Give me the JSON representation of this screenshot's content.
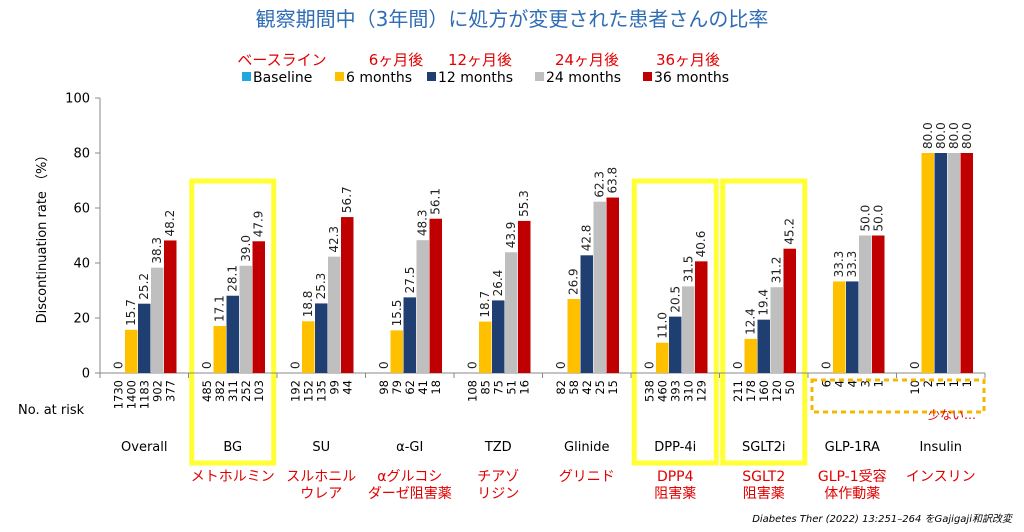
{
  "title": "観察期間中（3年間）に処方が変更された患者さんの比率",
  "legend_ja": [
    "ベースライン",
    "6ヶ月後",
    "12ヶ月後",
    "24ヶ月後",
    "36ヶ月後"
  ],
  "risk_label": "No. at risk",
  "annotation_small": "少ない…",
  "source": "Diabetes Ther (2022) 13:251–264 をGajigaji和訳改変",
  "highlight_color": "#ffff33",
  "annotation_color": "#f5b800",
  "chart_data": {
    "type": "bar",
    "ylabel": "Discontinuation rate （%）",
    "ylim": [
      0,
      100
    ],
    "yticks": [
      0,
      20,
      40,
      60,
      80,
      100
    ],
    "categories": [
      "Overall",
      "BG",
      "SU",
      "α-GI",
      "TZD",
      "Glinide",
      "DPP-4i",
      "SGLT2i",
      "GLP-1RA",
      "Insulin"
    ],
    "categories_ja": [
      "",
      "メトホルミン",
      "スルホニル\nウレア",
      "αグルコシ\nダーゼ阻害薬",
      "チアゾ\nリジン",
      "グリニド",
      "DPP4\n阻害薬",
      "SGLT2\n阻害薬",
      "GLP-1受容\n体作動薬",
      "インスリン"
    ],
    "highlighted": [
      "BG",
      "DPP-4i",
      "SGLT2i"
    ],
    "series": [
      {
        "name": "Baseline",
        "color": "#1fa8e0",
        "values": [
          0,
          0,
          0,
          0,
          0,
          0,
          0,
          0,
          0,
          0
        ],
        "labels": [
          "0",
          "0",
          "0",
          "0",
          "0",
          "0",
          "0",
          "0",
          "0",
          "0"
        ]
      },
      {
        "name": "6 months",
        "color": "#ffc000",
        "values": [
          15.7,
          17.1,
          18.8,
          15.5,
          18.7,
          26.9,
          11.0,
          12.4,
          33.3,
          80.0
        ],
        "labels": [
          "15.7",
          "17.1",
          "18.8",
          "15.5",
          "18.7",
          "26.9",
          "11.0",
          "12.4",
          "33.3",
          "80.0"
        ]
      },
      {
        "name": "12 months",
        "color": "#1f3f73",
        "values": [
          25.2,
          28.1,
          25.3,
          27.5,
          26.4,
          42.8,
          20.5,
          19.4,
          33.3,
          80.0
        ],
        "labels": [
          "25.2",
          "28.1",
          "25.3",
          "27.5",
          "26.4",
          "42.8",
          "20.5",
          "19.4",
          "33.3",
          "80.0"
        ]
      },
      {
        "name": "24 months",
        "color": "#bfbfbf",
        "values": [
          38.3,
          39.0,
          42.3,
          48.3,
          43.9,
          62.3,
          31.5,
          31.2,
          50.0,
          80.0
        ],
        "labels": [
          "38.3",
          "39.0",
          "42.3",
          "48.3",
          "43.9",
          "62.3",
          "31.5",
          "31.2",
          "50.0",
          "80.0"
        ]
      },
      {
        "name": "36 months",
        "color": "#c00000",
        "values": [
          48.2,
          47.9,
          56.7,
          56.1,
          55.3,
          63.8,
          40.6,
          45.2,
          50.0,
          80.0
        ],
        "labels": [
          "48.2",
          "47.9",
          "56.7",
          "56.1",
          "55.3",
          "63.8",
          "40.6",
          "45.2",
          "50.0",
          "80.0"
        ]
      }
    ],
    "at_risk": [
      [
        "1730",
        "1400",
        "1183",
        "902",
        "377"
      ],
      [
        "485",
        "382",
        "311",
        "252",
        "103"
      ],
      [
        "192",
        "152",
        "135",
        "99",
        "44"
      ],
      [
        "98",
        "79",
        "62",
        "41",
        "18"
      ],
      [
        "108",
        "85",
        "75",
        "51",
        "16"
      ],
      [
        "82",
        "58",
        "42",
        "25",
        "15"
      ],
      [
        "538",
        "460",
        "393",
        "310",
        "129"
      ],
      [
        "211",
        "178",
        "160",
        "120",
        "50"
      ],
      [
        "6",
        "4",
        "4",
        "3",
        "1"
      ],
      [
        "10",
        "2",
        "1",
        "1",
        "1"
      ]
    ]
  }
}
